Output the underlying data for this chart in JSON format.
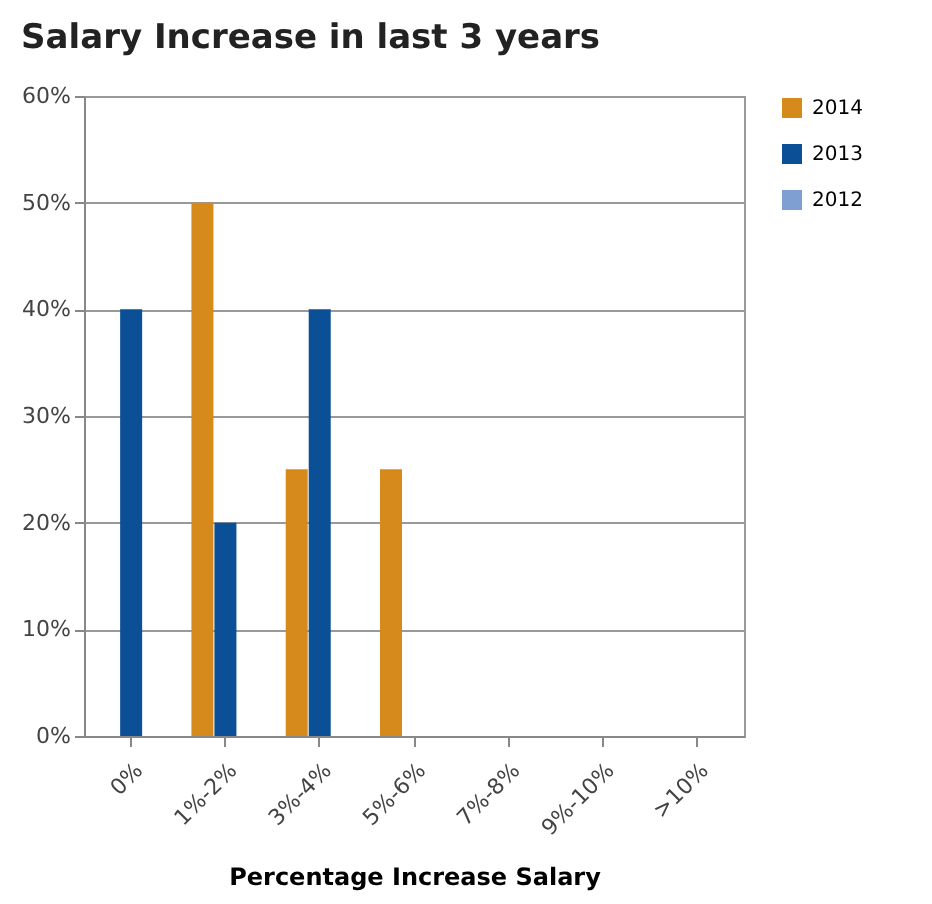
{
  "chart_data": {
    "type": "bar",
    "title": "Salary Increase in last 3 years",
    "xlabel": "Percentage Increase Salary",
    "categories": [
      "0%",
      "1%-2%",
      "3%-4%",
      "5%-6%",
      "7%-8%",
      "9%-10%",
      ">10%"
    ],
    "series": [
      {
        "name": "2014",
        "color": "#d68a1c",
        "values": [
          0,
          50,
          25,
          25,
          0,
          0,
          0
        ]
      },
      {
        "name": "2013",
        "color": "#0b4f96",
        "values": [
          40,
          20,
          40,
          0,
          0,
          0,
          0
        ]
      },
      {
        "name": "2012",
        "color": "#7f9fd3",
        "values": [
          0,
          0,
          0,
          0,
          0,
          0,
          0
        ]
      }
    ],
    "ylim": [
      0,
      60
    ],
    "yticks": [
      {
        "value": 0,
        "label": "0%"
      },
      {
        "value": 10,
        "label": "10%"
      },
      {
        "value": 20,
        "label": "20%"
      },
      {
        "value": 30,
        "label": "30%"
      },
      {
        "value": 40,
        "label": "40%"
      },
      {
        "value": 50,
        "label": "50%"
      },
      {
        "value": 60,
        "label": "60%"
      }
    ],
    "grid": "y",
    "legend": "top right"
  }
}
